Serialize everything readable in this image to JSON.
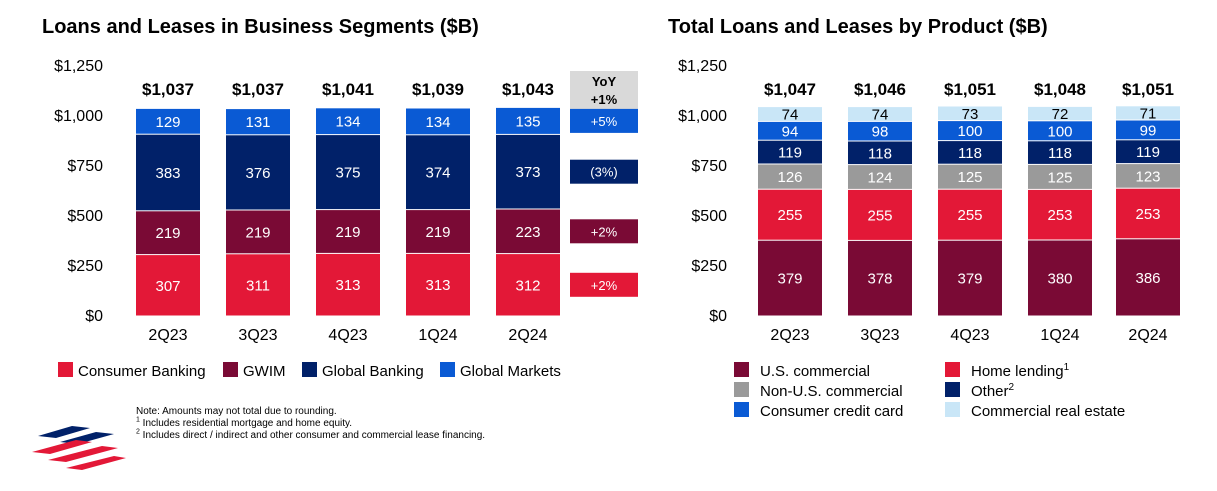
{
  "colors": {
    "consumer_banking": "#e31837",
    "gwim": "#7a0a35",
    "global_banking": "#012169",
    "global_markets": "#0a5ad4",
    "us_commercial": "#7a0a35",
    "home_lending": "#e31837",
    "non_us_commercial": "#9a9a9a",
    "other": "#012169",
    "consumer_credit_card": "#0a5ad4",
    "commercial_real_estate": "#c9e6f7",
    "yoy_header_bg": "#d9d9d9"
  },
  "chart_data": [
    {
      "type": "bar",
      "stacked": true,
      "title": "Loans and Leases in Business Segments ($B)",
      "categories": [
        "2Q23",
        "3Q23",
        "4Q23",
        "1Q24",
        "2Q24"
      ],
      "ylim": [
        0,
        1250
      ],
      "yticks": [
        0,
        250,
        500,
        750,
        1000,
        1250
      ],
      "ytick_labels": [
        "$0",
        "$250",
        "$500",
        "$750",
        "$1,000",
        "$1,250"
      ],
      "totals": [
        "$1,037",
        "$1,037",
        "$1,041",
        "$1,039",
        "$1,043"
      ],
      "series": [
        {
          "name": "Consumer Banking",
          "color_key": "consumer_banking",
          "values": [
            307,
            311,
            313,
            313,
            312
          ],
          "label_color": "#ffffff"
        },
        {
          "name": "GWIM",
          "color_key": "gwim",
          "values": [
            219,
            219,
            219,
            219,
            223
          ],
          "label_color": "#ffffff"
        },
        {
          "name": "Global Banking",
          "color_key": "global_banking",
          "values": [
            383,
            376,
            375,
            374,
            373
          ],
          "label_color": "#ffffff"
        },
        {
          "name": "Global Markets",
          "color_key": "global_markets",
          "values": [
            129,
            131,
            134,
            134,
            135
          ],
          "label_color": "#ffffff"
        }
      ],
      "yoy": {
        "header_line1": "YoY",
        "header_line2": "+1%",
        "changes": [
          "+2%",
          "+2%",
          "(3%)",
          "+5%"
        ]
      },
      "legend": [
        "Consumer Banking",
        "GWIM",
        "Global Banking",
        "Global Markets"
      ],
      "legend_placement": "bottom"
    },
    {
      "type": "bar",
      "stacked": true,
      "title": "Total Loans and Leases by Product ($B)",
      "categories": [
        "2Q23",
        "3Q23",
        "4Q23",
        "1Q24",
        "2Q24"
      ],
      "ylim": [
        0,
        1250
      ],
      "yticks": [
        0,
        250,
        500,
        750,
        1000,
        1250
      ],
      "ytick_labels": [
        "$0",
        "$250",
        "$500",
        "$750",
        "$1,000",
        "$1,250"
      ],
      "totals": [
        "$1,047",
        "$1,046",
        "$1,051",
        "$1,048",
        "$1,051"
      ],
      "series": [
        {
          "name": "U.S. commercial",
          "color_key": "us_commercial",
          "values": [
            379,
            378,
            379,
            380,
            386
          ],
          "label_color": "#ffffff"
        },
        {
          "name": "Home lending",
          "color_key": "home_lending",
          "values": [
            255,
            255,
            255,
            253,
            253
          ],
          "label_color": "#ffffff"
        },
        {
          "name": "Non-U.S. commercial",
          "color_key": "non_us_commercial",
          "values": [
            126,
            124,
            125,
            125,
            123
          ],
          "label_color": "#ffffff"
        },
        {
          "name": "Other",
          "color_key": "other",
          "values": [
            119,
            118,
            118,
            118,
            119
          ],
          "label_color": "#ffffff"
        },
        {
          "name": "Consumer credit card",
          "color_key": "consumer_credit_card",
          "values": [
            94,
            98,
            100,
            100,
            99
          ],
          "label_color": "#ffffff"
        },
        {
          "name": "Commercial real estate",
          "color_key": "commercial_real_estate",
          "values": [
            74,
            74,
            73,
            72,
            71
          ],
          "label_color": "#000000"
        }
      ],
      "legend": [
        {
          "name": "U.S. commercial",
          "sup": ""
        },
        {
          "name": "Home lending",
          "sup": "1"
        },
        {
          "name": "Non-U.S. commercial",
          "sup": ""
        },
        {
          "name": "Other",
          "sup": "2"
        },
        {
          "name": "Consumer credit card",
          "sup": ""
        },
        {
          "name": "Commercial real estate",
          "sup": ""
        }
      ],
      "legend_placement": "bottom"
    }
  ],
  "notes": {
    "line1": "Note: Amounts may not total due to rounding.",
    "line2_sup": "1",
    "line2": " Includes residential mortgage and home equity.",
    "line3_sup": "2",
    "line3": " Includes direct / indirect and other consumer and commercial lease financing."
  },
  "logo": {
    "name": "bank-flag-logo"
  }
}
